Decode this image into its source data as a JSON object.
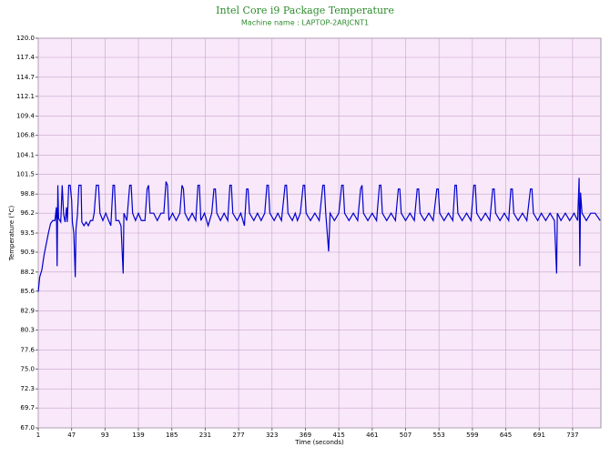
{
  "chart_data": {
    "type": "line",
    "title": "Intel Core i9 Package Temperature",
    "subtitle": "Machine name : LAPTOP-2ARJCNT1",
    "x_label": "Time (seconds)",
    "y_label": "Temperature (°C)",
    "color": "#0000cc",
    "grid": true,
    "xlim": [
      1,
      776
    ],
    "ylim": [
      67,
      120
    ],
    "xticks": [
      1,
      47,
      93,
      139,
      185,
      231,
      277,
      323,
      369,
      415,
      461,
      507,
      553,
      599,
      645,
      691,
      737
    ],
    "yticks": [
      {
        "value": 67,
        "label": "67.0"
      },
      69.7,
      72.3,
      {
        "value": 75,
        "label": "75.0"
      },
      77.6,
      80.3,
      82.9,
      85.6,
      88.2,
      90.9,
      93.5,
      96.2,
      98.8,
      101.5,
      104.1,
      106.8,
      109.4,
      112.1,
      114.7,
      117.4,
      {
        "value": 120,
        "label": "120.0"
      }
    ],
    "x": [
      1,
      3,
      6,
      9,
      12,
      15,
      18,
      21,
      24,
      26,
      27,
      28,
      29,
      32,
      34,
      36,
      38,
      40,
      41,
      43,
      45,
      47,
      48,
      50,
      52,
      53,
      55,
      57,
      60,
      61,
      64,
      67,
      70,
      73,
      76,
      78,
      81,
      84,
      86,
      90,
      94,
      98,
      101,
      104,
      106,
      108,
      112,
      115,
      118,
      119,
      123,
      127,
      129,
      131,
      135,
      139,
      143,
      148,
      151,
      153,
      155,
      160,
      165,
      170,
      174,
      177,
      179,
      181,
      186,
      191,
      196,
      199,
      201,
      203,
      208,
      213,
      218,
      221,
      223,
      225,
      230,
      235,
      240,
      243,
      245,
      247,
      252,
      257,
      262,
      265,
      267,
      269,
      275,
      280,
      285,
      288,
      290,
      292,
      298,
      303,
      308,
      313,
      316,
      318,
      320,
      326,
      331,
      336,
      341,
      343,
      345,
      351,
      355,
      358,
      362,
      366,
      368,
      370,
      376,
      382,
      388,
      393,
      395,
      397,
      401,
      403,
      409,
      415,
      419,
      421,
      423,
      429,
      435,
      441,
      445,
      447,
      449,
      455,
      461,
      467,
      471,
      473,
      475,
      481,
      487,
      493,
      497,
      499,
      501,
      507,
      513,
      519,
      523,
      525,
      527,
      533,
      539,
      545,
      550,
      552,
      554,
      560,
      566,
      572,
      575,
      577,
      579,
      585,
      591,
      597,
      601,
      603,
      605,
      611,
      617,
      623,
      627,
      629,
      631,
      637,
      643,
      649,
      652,
      654,
      656,
      662,
      668,
      674,
      679,
      681,
      683,
      689,
      694,
      700,
      706,
      712,
      715,
      716,
      721,
      727,
      733,
      739,
      744,
      746,
      747,
      748,
      750,
      756,
      762,
      768,
      775
    ],
    "values": [
      85.5,
      87.5,
      88.5,
      90.5,
      92,
      93.5,
      94.8,
      95.2,
      95.2,
      97,
      89,
      100,
      95.5,
      95,
      100,
      96,
      95,
      97,
      95,
      100,
      100,
      98,
      95,
      93.5,
      87.5,
      94,
      96,
      100,
      100,
      95,
      94.5,
      95,
      94.5,
      95.2,
      95.2,
      96.2,
      100,
      100,
      96.2,
      95.2,
      96.2,
      95.2,
      94.5,
      100,
      100,
      95.2,
      95.2,
      94.5,
      88,
      96.2,
      95.2,
      100,
      100,
      96.2,
      95.2,
      96.2,
      95.2,
      95.2,
      99.5,
      100,
      96.2,
      96.2,
      95.2,
      96.2,
      96.2,
      100.5,
      100,
      95.2,
      96.2,
      95.2,
      96.2,
      100,
      99.5,
      96.2,
      95.2,
      96.2,
      95.2,
      100,
      100,
      95.2,
      96.2,
      94.5,
      96.2,
      99.5,
      99.5,
      96.2,
      95.2,
      96.2,
      95.2,
      100,
      100,
      96.2,
      95.2,
      96.2,
      94.5,
      99.5,
      99.5,
      96.2,
      95.2,
      96.2,
      95.2,
      96.2,
      100,
      100,
      96.2,
      95.2,
      96.2,
      95.2,
      100,
      100,
      96.2,
      95.2,
      96.2,
      95.2,
      96.2,
      100,
      100,
      96.2,
      95.2,
      96.2,
      95.2,
      100,
      100,
      96.2,
      91,
      96.2,
      95.2,
      96.2,
      100,
      100,
      96.2,
      95.2,
      96.2,
      95.2,
      99.5,
      100,
      96.2,
      95.2,
      96.2,
      95.2,
      100,
      100,
      96.2,
      95.2,
      96.2,
      95.2,
      99.5,
      99.5,
      96.2,
      95.2,
      96.2,
      95.2,
      99.5,
      99.5,
      96.2,
      95.2,
      96.2,
      95.2,
      99.5,
      99.5,
      96.2,
      95.2,
      96.2,
      95.2,
      100,
      100,
      96.2,
      95.2,
      96.2,
      95.2,
      100,
      100,
      96.2,
      95.2,
      96.2,
      95.2,
      99.5,
      99.5,
      96.2,
      95.2,
      96.2,
      95.2,
      99.5,
      99.5,
      96.2,
      95.2,
      96.2,
      95.2,
      99.5,
      99.5,
      96.2,
      95.2,
      96.2,
      95.2,
      96.2,
      95.2,
      88,
      96.2,
      95.2,
      96.2,
      95.2,
      96.2,
      95.2,
      101,
      89,
      99,
      96.2,
      95.2,
      96.2,
      96.2,
      95.2
    ]
  }
}
